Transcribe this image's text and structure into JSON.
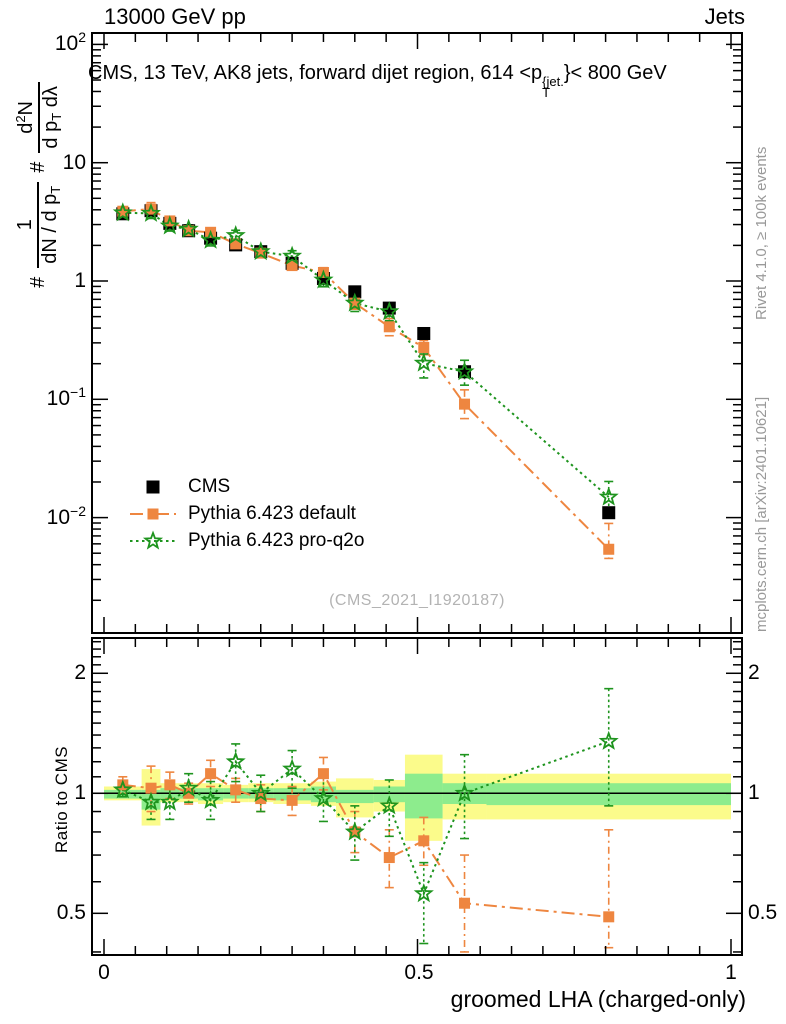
{
  "header": {
    "beam": "13000 GeV pp",
    "process": "Jets"
  },
  "title": {
    "part1": "CMS, 13 TeV, AK8 jets, forward dijet region, 614 <p",
    "sup": "{jet.",
    "sub": "T",
    "part2": "}< 800 GeV"
  },
  "watermark": "(CMS_2021_I1920187)",
  "side_notes": {
    "generator": "Rivet 4.1.0, ≥ 100k events",
    "site": "mcplots.cern.ch [arXiv:2401.10621]"
  },
  "y_axis_title": {
    "hash1": "#",
    "num1": "1",
    "den1_text": "dN / d p",
    "den1_sub": "T",
    "hash2": "#",
    "num2_a": "d",
    "num2_sup": "2",
    "num2_b": "N",
    "den2_a": "d p",
    "den2_sub": "T",
    "den2_b": " dλ"
  },
  "axes": {
    "x_label": "groomed LHA (charged-only)",
    "ratio_y_label": "Ratio to CMS",
    "x_ticks": [
      "0",
      "0.5",
      "1"
    ],
    "main_y_ticks": [
      {
        "base": "10",
        "exp": "2"
      },
      {
        "base": "10",
        "exp": ""
      },
      {
        "base": "1",
        "exp": ""
      },
      {
        "base": "10",
        "exp": "−1"
      },
      {
        "base": "10",
        "exp": "−2"
      }
    ],
    "ratio_y_ticks": [
      "2",
      "1",
      "0.5"
    ]
  },
  "legend": {
    "items": [
      {
        "label": "CMS"
      },
      {
        "label": "Pythia 6.423 default"
      },
      {
        "label": "Pythia 6.423 pro-q2o"
      }
    ]
  },
  "chart_data": {
    "type": "scatter",
    "title": "CMS, 13 TeV, AK8 jets, forward dijet region, 614 < pT^{jet} < 800 GeV",
    "xlabel": "groomed LHA (charged-only)",
    "ylabel_main": "# 1/(dN/dpT) # d2N/(dpT dλ)",
    "ylabel_ratio": "Ratio to CMS",
    "x_range": [
      0,
      1
    ],
    "main_y_log_range": [
      0.001,
      125
    ],
    "ratio_y_log_range": [
      0.39,
      2.45
    ],
    "grid": false,
    "legend_position": "inside-left-lower",
    "bin_edges": [
      0,
      0.06,
      0.09,
      0.12,
      0.15,
      0.19,
      0.23,
      0.27,
      0.33,
      0.37,
      0.43,
      0.48,
      0.54,
      0.61,
      1.0
    ],
    "x": [
      0.03,
      0.075,
      0.105,
      0.135,
      0.17,
      0.21,
      0.25,
      0.3,
      0.35,
      0.4,
      0.455,
      0.51,
      0.575,
      0.805
    ],
    "series": [
      {
        "name": "CMS",
        "color": "#000000",
        "marker": "square",
        "marker_size": 13,
        "line": "none",
        "values": [
          3.7,
          3.93,
          3.07,
          2.66,
          2.3,
          2.02,
          1.77,
          1.41,
          1.05,
          0.81,
          0.59,
          0.36,
          0.171,
          0.011
        ]
      },
      {
        "name": "Pythia 6.423 default",
        "color": "#ee8640",
        "marker": "square",
        "marker_size": 11,
        "line": "dashdot",
        "values": [
          3.89,
          4.05,
          3.22,
          2.66,
          2.58,
          2.06,
          1.72,
          1.35,
          1.18,
          0.65,
          0.41,
          0.274,
          0.091,
          0.0054
        ],
        "ratio": [
          1.05,
          1.03,
          1.05,
          1.0,
          1.12,
          1.02,
          0.97,
          0.96,
          1.12,
          0.8,
          0.69,
          0.76,
          0.53,
          0.49
        ],
        "ratio_err": [
          [
            1.0,
            1.1
          ],
          [
            0.9,
            1.17
          ],
          [
            0.97,
            1.13
          ],
          [
            0.94,
            1.06
          ],
          [
            1.04,
            1.21
          ],
          [
            0.95,
            1.09
          ],
          [
            0.9,
            1.05
          ],
          [
            0.88,
            1.04
          ],
          [
            1.02,
            1.23
          ],
          [
            0.71,
            0.9
          ],
          [
            0.58,
            0.81
          ],
          [
            0.66,
            0.87
          ],
          [
            0.4,
            0.7
          ],
          [
            0.41,
            0.81
          ]
        ]
      },
      {
        "name": "Pythia 6.423 pro-q2o",
        "color": "#1e941e",
        "marker": "star",
        "marker_size": 8,
        "line": "dotted",
        "values": [
          3.77,
          3.73,
          2.92,
          2.74,
          2.21,
          2.42,
          1.77,
          1.62,
          1.02,
          0.65,
          0.55,
          0.202,
          0.171,
          0.0149
        ],
        "ratio": [
          1.02,
          0.95,
          0.95,
          1.03,
          0.96,
          1.2,
          1.0,
          1.15,
          0.97,
          0.8,
          0.93,
          0.56,
          1.0,
          1.35
        ],
        "ratio_err": [
          [
            0.98,
            1.06
          ],
          [
            0.86,
            1.05
          ],
          [
            0.86,
            1.05
          ],
          [
            0.95,
            1.12
          ],
          [
            0.86,
            1.07
          ],
          [
            1.07,
            1.33
          ],
          [
            0.9,
            1.11
          ],
          [
            1.03,
            1.28
          ],
          [
            0.85,
            1.1
          ],
          [
            0.68,
            0.93
          ],
          [
            0.78,
            1.08
          ],
          [
            0.42,
            0.67
          ],
          [
            0.77,
            1.25
          ],
          [
            0.93,
            1.83
          ]
        ]
      }
    ],
    "uncertainty_bands": {
      "outer_color": "#fbfb8b",
      "inner_color": "#8dec8d",
      "outer": [
        [
          0.96,
          1.04
        ],
        [
          0.83,
          1.15
        ],
        [
          0.95,
          1.06
        ],
        [
          0.95,
          1.06
        ],
        [
          0.94,
          1.06
        ],
        [
          0.95,
          1.05
        ],
        [
          0.95,
          1.06
        ],
        [
          0.94,
          1.06
        ],
        [
          0.93,
          1.07
        ],
        [
          0.87,
          1.09
        ],
        [
          0.9,
          1.08
        ],
        [
          0.76,
          1.25
        ],
        [
          0.86,
          1.12
        ],
        [
          0.86,
          1.12
        ]
      ],
      "inner": [
        [
          0.97,
          1.02
        ],
        [
          0.91,
          1.02
        ],
        [
          0.97,
          1.03
        ],
        [
          0.97,
          1.03
        ],
        [
          0.96,
          1.03
        ],
        [
          0.97,
          1.03
        ],
        [
          0.97,
          1.03
        ],
        [
          0.96,
          1.03
        ],
        [
          0.95,
          1.04
        ],
        [
          0.945,
          1.02
        ],
        [
          0.95,
          1.04
        ],
        [
          0.865,
          1.12
        ],
        [
          0.94,
          1.06
        ],
        [
          0.934,
          1.06
        ]
      ]
    },
    "reference_line": 1.0
  }
}
